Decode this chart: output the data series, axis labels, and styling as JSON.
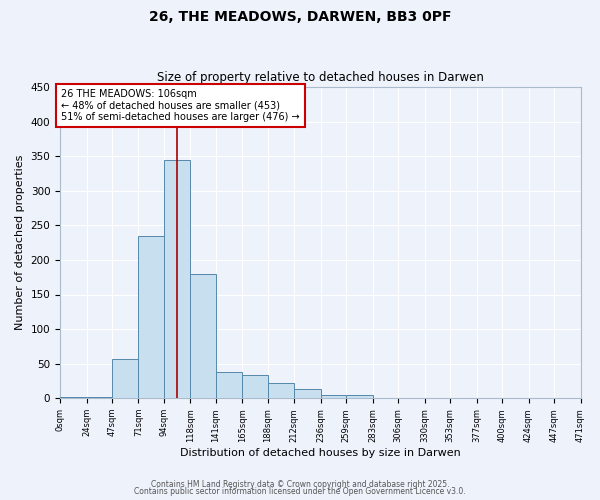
{
  "title": "26, THE MEADOWS, DARWEN, BB3 0PF",
  "subtitle": "Size of property relative to detached houses in Darwen",
  "xlabel": "Distribution of detached houses by size in Darwen",
  "ylabel": "Number of detached properties",
  "bar_color": "#c8dff0",
  "bar_edge_color": "#5588aa",
  "background_color": "#eef2fb",
  "grid_color": "#ffffff",
  "bin_edges": [
    0,
    24,
    47,
    71,
    94,
    118,
    141,
    165,
    188,
    212,
    236,
    259,
    283,
    306,
    330,
    353,
    377,
    400,
    424,
    447,
    471
  ],
  "bin_labels": [
    "0sqm",
    "24sqm",
    "47sqm",
    "71sqm",
    "94sqm",
    "118sqm",
    "141sqm",
    "165sqm",
    "188sqm",
    "212sqm",
    "236sqm",
    "259sqm",
    "283sqm",
    "306sqm",
    "330sqm",
    "353sqm",
    "377sqm",
    "400sqm",
    "424sqm",
    "447sqm",
    "471sqm"
  ],
  "bar_heights": [
    2,
    2,
    56,
    234,
    345,
    180,
    38,
    34,
    22,
    13,
    4,
    4,
    1,
    0,
    0,
    0,
    0,
    0,
    0,
    0
  ],
  "ylim": [
    0,
    450
  ],
  "yticks": [
    0,
    50,
    100,
    150,
    200,
    250,
    300,
    350,
    400,
    450
  ],
  "vline_x": 106,
  "vline_color": "#aa0000",
  "annotation_text": "26 THE MEADOWS: 106sqm\n← 48% of detached houses are smaller (453)\n51% of semi-detached houses are larger (476) →",
  "annotation_box_color": "#ffffff",
  "annotation_box_edge": "#cc0000",
  "footer_line1": "Contains HM Land Registry data © Crown copyright and database right 2025.",
  "footer_line2": "Contains public sector information licensed under the Open Government Licence v3.0."
}
